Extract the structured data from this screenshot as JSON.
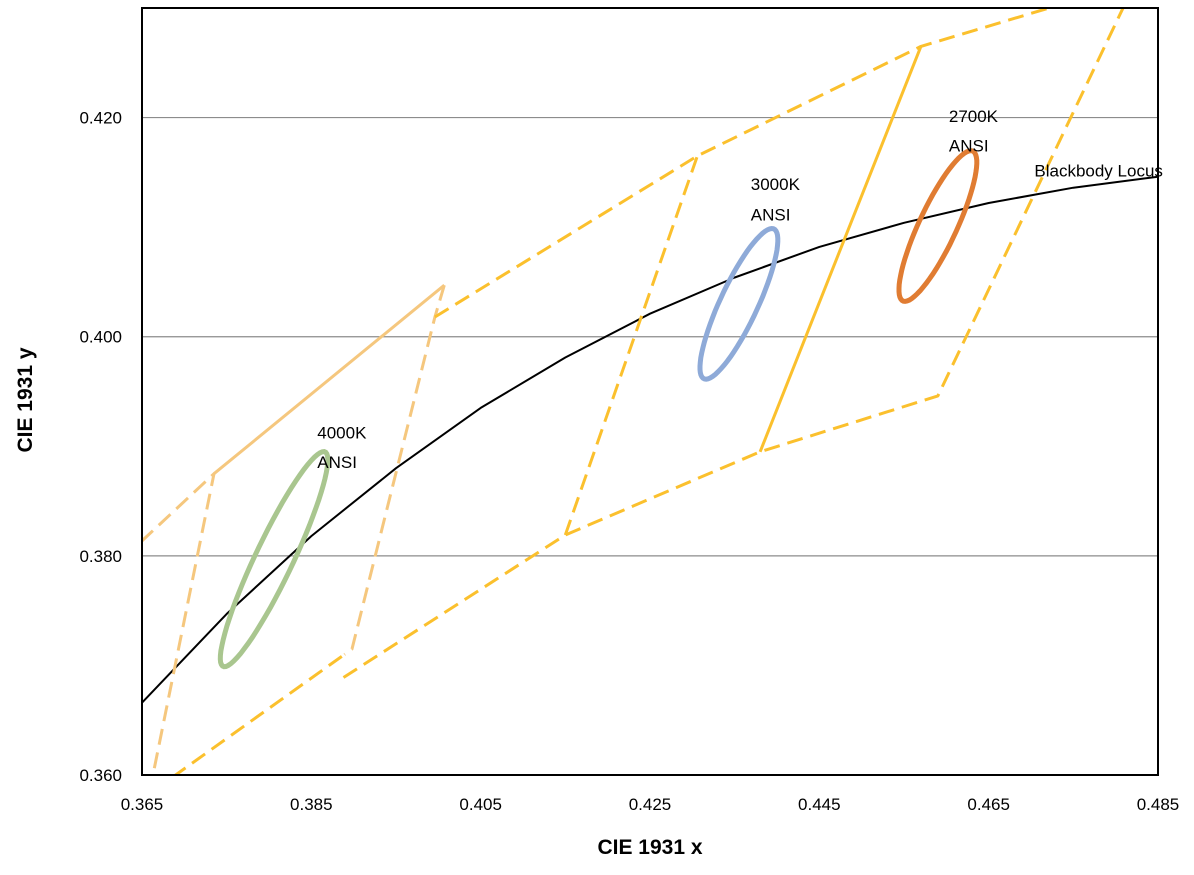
{
  "chart_data": {
    "type": "scatter",
    "title": "",
    "xlabel": "CIE 1931 x",
    "ylabel": "CIE 1931 y",
    "xlim": [
      0.365,
      0.485
    ],
    "ylim": [
      0.36,
      0.43
    ],
    "x_ticks": [
      "0.365",
      "0.385",
      "0.405",
      "0.425",
      "0.445",
      "0.465",
      "0.485"
    ],
    "y_ticks": [
      "0.360",
      "0.380",
      "0.400",
      "0.420"
    ],
    "y_grid": true,
    "legend": "none",
    "series": [
      {
        "kind": "curve",
        "color": "#000000",
        "style": "solid",
        "points": [
          [
            0.365,
            0.3666
          ],
          [
            0.375,
            0.3747
          ],
          [
            0.385,
            0.3818
          ],
          [
            0.395,
            0.388
          ],
          [
            0.405,
            0.3935
          ],
          [
            0.415,
            0.3981
          ],
          [
            0.425,
            0.4021
          ],
          [
            0.435,
            0.4054
          ],
          [
            0.445,
            0.4082
          ],
          [
            0.455,
            0.4104
          ],
          [
            0.465,
            0.4122
          ],
          [
            0.475,
            0.4136
          ],
          [
            0.485,
            0.4146
          ]
        ]
      },
      {
        "kind": "polyline",
        "color": "#f5c77e",
        "style": "dashed",
        "points": [
          [
            0.3649,
            0.3813
          ],
          [
            0.3735,
            0.3875
          ],
          [
            0.366,
            0.3589
          ]
        ]
      },
      {
        "kind": "polyline",
        "color": "#f5c77e",
        "style": "solid",
        "points": [
          [
            0.3735,
            0.3875
          ],
          [
            0.4007,
            0.4047
          ]
        ]
      },
      {
        "kind": "polyline",
        "color": "#f5c77e",
        "style": "dashed",
        "points": [
          [
            0.4007,
            0.4047
          ],
          [
            0.3996,
            0.4018
          ],
          [
            0.3898,
            0.3715
          ],
          [
            0.3889,
            0.371
          ]
        ]
      },
      {
        "kind": "polyline",
        "color": "#fbc02d",
        "style": "dashed",
        "points": [
          [
            0.3996,
            0.4018
          ],
          [
            0.4306,
            0.4165
          ],
          [
            0.457,
            0.4265
          ],
          [
            0.473,
            0.4302
          ]
        ]
      },
      {
        "kind": "polyline",
        "color": "#fbc02d",
        "style": "dashed",
        "points": [
          [
            0.3888,
            0.3689
          ],
          [
            0.415,
            0.3819
          ],
          [
            0.438,
            0.3895
          ],
          [
            0.459,
            0.3946
          ],
          [
            0.481,
            0.4302
          ]
        ]
      },
      {
        "kind": "polyline",
        "color": "#fbc02d",
        "style": "dashed",
        "points": [
          [
            0.415,
            0.3819
          ],
          [
            0.4306,
            0.4165
          ]
        ]
      },
      {
        "kind": "polyline",
        "color": "#fbc02d",
        "style": "dashed",
        "points": [
          [
            0.3686,
            0.3598
          ],
          [
            0.3889,
            0.371
          ]
        ]
      },
      {
        "kind": "polyline",
        "color": "#fbc02d",
        "style": "solid",
        "points": [
          [
            0.438,
            0.3895
          ],
          [
            0.457,
            0.4265
          ]
        ]
      },
      {
        "kind": "ellipse",
        "color": "#a9c68f",
        "center": [
          0.3806,
          0.3797
        ],
        "semi_axes": [
          0.0115,
          0.0021
        ],
        "angle_deg": 58
      },
      {
        "kind": "ellipse",
        "color": "#8eaad8",
        "center": [
          0.4355,
          0.403
        ],
        "semi_axes": [
          0.008,
          0.0021
        ],
        "angle_deg": 58
      },
      {
        "kind": "ellipse",
        "color": "#e07c32",
        "center": [
          0.459,
          0.4101
        ],
        "semi_axes": [
          0.008,
          0.0021
        ],
        "angle_deg": 58
      }
    ],
    "annotations": [
      {
        "text": "4000K",
        "x": 0.3857,
        "y": 0.3907
      },
      {
        "text": "ANSI",
        "x": 0.3857,
        "y": 0.388
      },
      {
        "text": "3000K",
        "x": 0.4369,
        "y": 0.4134
      },
      {
        "text": "ANSI",
        "x": 0.4369,
        "y": 0.4106
      },
      {
        "text": "2700K",
        "x": 0.4603,
        "y": 0.4196
      },
      {
        "text": "ANSI",
        "x": 0.4603,
        "y": 0.4169
      },
      {
        "text": "Blackbody Locus",
        "x": 0.4704,
        "y": 0.4146
      }
    ]
  }
}
